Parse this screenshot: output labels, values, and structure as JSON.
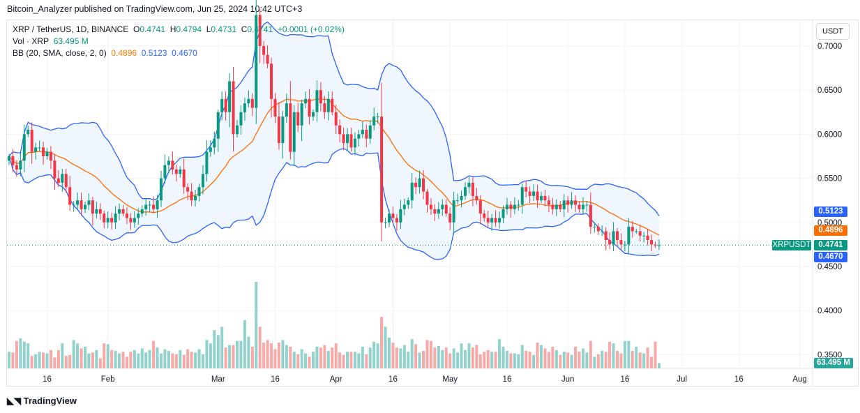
{
  "publisher_line": "Bitcoin_Analyzer published on TradingView.com, Jun 25, 2024 10:42 UTC+3",
  "legend": {
    "symbol": "XRP / TetherUS, 1D, BINANCE",
    "o_label": "O",
    "o": "0.4741",
    "h_label": "H",
    "h": "0.4794",
    "l_label": "L",
    "l": "0.4731",
    "c_label": "C",
    "c": "0.4741",
    "change": "+0.0001 (+0.02%)",
    "vol_label": "Vol · XRP",
    "vol": "63.495 M",
    "bb_label": "BB (20, SMA, close, 2, 0)",
    "bb_basis": "0.4896",
    "bb_upper": "0.5123",
    "bb_lower": "0.4670"
  },
  "currency_button": "USDT",
  "badges": {
    "upper": "0.5123",
    "basis": "0.4896",
    "symbol": "XRPUSDT",
    "last": "0.4741",
    "lower": "0.4670",
    "volume": "63.495 M"
  },
  "logo_text": "TradingView",
  "colors": {
    "up": "#089981",
    "down": "#f23645",
    "upVol": "#92d2cc",
    "downVol": "#f7a9a7",
    "basis": "#ff6d00",
    "band": "#2962ff",
    "bandFill": "#f0f6fd"
  },
  "chart_data": {
    "type": "candlestick",
    "start_date": "2024-01-06",
    "interval": "1D",
    "y_ticks": [
      "0.7000",
      "0.6500",
      "0.6000",
      "0.5500",
      "0.5000",
      "0.4500",
      "0.4000",
      "0.3500"
    ],
    "ylim": [
      0.34,
      0.73
    ],
    "x_ticks": [
      {
        "label": "16",
        "day": 10
      },
      {
        "label": "Feb",
        "day": 26
      },
      {
        "label": "Mar",
        "day": 55
      },
      {
        "label": "16",
        "day": 70
      },
      {
        "label": "Apr",
        "day": 86
      },
      {
        "label": "16",
        "day": 101
      },
      {
        "label": "May",
        "day": 116
      },
      {
        "label": "16",
        "day": 131
      },
      {
        "label": "Jun",
        "day": 147
      },
      {
        "label": "16",
        "day": 162
      },
      {
        "label": "Jul",
        "day": 177
      },
      {
        "label": "16",
        "day": 192
      },
      {
        "label": "Aug",
        "day": 208
      }
    ],
    "close": [
      0.575,
      0.565,
      0.56,
      0.57,
      0.6,
      0.605,
      0.58,
      0.585,
      0.585,
      0.575,
      0.58,
      0.57,
      0.55,
      0.545,
      0.555,
      0.54,
      0.52,
      0.52,
      0.525,
      0.515,
      0.52,
      0.525,
      0.51,
      0.515,
      0.51,
      0.5,
      0.505,
      0.5,
      0.51,
      0.515,
      0.51,
      0.505,
      0.5,
      0.505,
      0.51,
      0.515,
      0.52,
      0.52,
      0.515,
      0.525,
      0.55,
      0.565,
      0.57,
      0.56,
      0.555,
      0.56,
      0.54,
      0.535,
      0.525,
      0.53,
      0.54,
      0.555,
      0.58,
      0.585,
      0.595,
      0.625,
      0.64,
      0.625,
      0.66,
      0.6,
      0.61,
      0.625,
      0.635,
      0.64,
      0.63,
      0.735,
      0.7,
      0.69,
      0.68,
      0.64,
      0.62,
      0.59,
      0.62,
      0.635,
      0.58,
      0.625,
      0.61,
      0.635,
      0.64,
      0.62,
      0.625,
      0.65,
      0.635,
      0.625,
      0.64,
      0.625,
      0.61,
      0.6,
      0.59,
      0.6,
      0.585,
      0.595,
      0.6,
      0.605,
      0.595,
      0.61,
      0.62,
      0.62,
      0.5,
      0.5,
      0.51,
      0.505,
      0.5,
      0.515,
      0.52,
      0.525,
      0.545,
      0.54,
      0.55,
      0.535,
      0.52,
      0.515,
      0.51,
      0.515,
      0.52,
      0.51,
      0.5,
      0.525,
      0.525,
      0.53,
      0.54,
      0.545,
      0.53,
      0.525,
      0.51,
      0.505,
      0.5,
      0.505,
      0.5,
      0.505,
      0.515,
      0.52,
      0.515,
      0.52,
      0.52,
      0.54,
      0.535,
      0.53,
      0.535,
      0.525,
      0.53,
      0.525,
      0.52,
      0.515,
      0.52,
      0.515,
      0.525,
      0.52,
      0.525,
      0.52,
      0.515,
      0.52,
      0.52,
      0.495,
      0.495,
      0.49,
      0.49,
      0.48,
      0.475,
      0.49,
      0.48,
      0.475,
      0.475,
      0.495,
      0.49,
      0.49,
      0.485,
      0.485,
      0.48,
      0.475,
      0.474,
      0.4741
    ],
    "volume_millions": [
      200,
      190,
      330,
      360,
      320,
      300,
      150,
      170,
      200,
      190,
      180,
      220,
      130,
      220,
      300,
      150,
      160,
      340,
      300,
      240,
      260,
      180,
      190,
      220,
      120,
      300,
      290,
      220,
      210,
      180,
      200,
      140,
      200,
      220,
      180,
      240,
      190,
      220,
      330,
      250,
      180,
      230,
      210,
      180,
      170,
      220,
      160,
      230,
      200,
      190,
      230,
      170,
      340,
      300,
      460,
      400,
      500,
      250,
      280,
      280,
      330,
      330,
      580,
      380,
      260,
      1040,
      500,
      310,
      340,
      300,
      230,
      310,
      340,
      280,
      260,
      200,
      170,
      230,
      180,
      140,
      200,
      260,
      250,
      280,
      210,
      250,
      300,
      190,
      160,
      200,
      200,
      200,
      180,
      260,
      170,
      250,
      320,
      300,
      620,
      500,
      370,
      310,
      250,
      240,
      280,
      200,
      350,
      290,
      190,
      210,
      340,
      330,
      250,
      270,
      220,
      250,
      180,
      240,
      190,
      300,
      220,
      300,
      250,
      280,
      170,
      200,
      220,
      200,
      200,
      350,
      260,
      210,
      180,
      180,
      170,
      280,
      210,
      200,
      160,
      310,
      280,
      240,
      200,
      260,
      220,
      160,
      200,
      190,
      160,
      260,
      200,
      240,
      190,
      330,
      140,
      170,
      210,
      200,
      320,
      300,
      210,
      180,
      330,
      330,
      210,
      260,
      190,
      180,
      250,
      140,
      320,
      63.495
    ],
    "bollinger": {
      "period": 20,
      "stddev": 2
    }
  }
}
